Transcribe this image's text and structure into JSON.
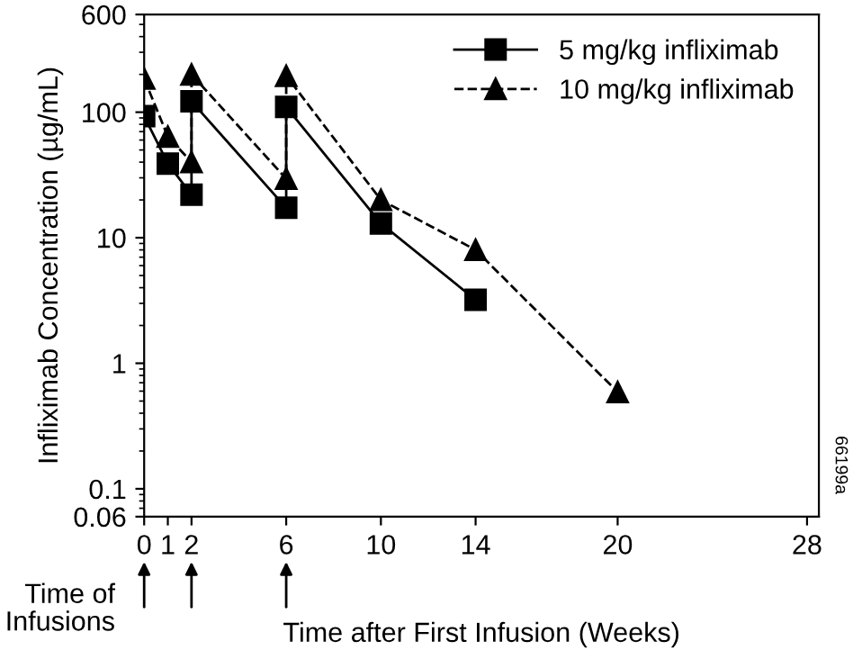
{
  "chart_data": {
    "type": "line",
    "xlabel": "Time after First Infusion (Weeks)",
    "ylabel": "Infliximab Concentration (µg/mL)",
    "log": "y",
    "xlim": [
      0,
      28.5
    ],
    "ylim": [
      0.06,
      600
    ],
    "xticks": [
      0,
      1,
      2,
      6,
      10,
      14,
      20,
      28
    ],
    "yticks": [
      0.06,
      0.1,
      1,
      10,
      100,
      600
    ],
    "grid": false,
    "legend": "top right",
    "series": [
      {
        "name": "5 mg/kg infliximab",
        "color": "#000000",
        "marker": "square",
        "line_style": "solid",
        "x": [
          0,
          1,
          2,
          2,
          6,
          6,
          10,
          14
        ],
        "values": [
          93,
          39,
          22,
          122,
          17.3,
          110,
          13,
          3.2
        ]
      },
      {
        "name": "10 mg/kg infliximab",
        "color": "#000000",
        "marker": "triangle",
        "line_style": "dashed",
        "x": [
          0,
          1,
          2,
          2,
          6,
          6,
          10,
          14,
          20
        ],
        "values": [
          185,
          64,
          40,
          200,
          29.5,
          195,
          20,
          8,
          0.59
        ]
      }
    ],
    "annotations": [
      "Time of Infusions",
      "66199a"
    ]
  }
}
